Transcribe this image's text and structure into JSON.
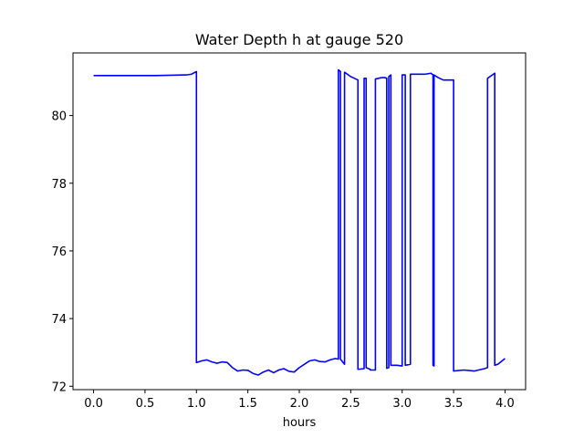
{
  "chart_data": {
    "type": "line",
    "title": "Water Depth h at gauge 520",
    "xlabel": "hours",
    "ylabel": "",
    "xlim": [
      -0.2,
      4.2
    ],
    "ylim": [
      71.9,
      81.85
    ],
    "xticks": [
      0.0,
      0.5,
      1.0,
      1.5,
      2.0,
      2.5,
      3.0,
      3.5,
      4.0
    ],
    "xtick_labels": [
      "0.0",
      "0.5",
      "1.0",
      "1.5",
      "2.0",
      "2.5",
      "3.0",
      "3.5",
      "4.0"
    ],
    "yticks": [
      72,
      74,
      76,
      78,
      80
    ],
    "ytick_labels": [
      "72",
      "74",
      "76",
      "78",
      "80"
    ],
    "grid": false,
    "series": [
      {
        "color": "#0000ff",
        "x": [
          0.0,
          0.3,
          0.6,
          0.9,
          0.95,
          1.0,
          1.0,
          1.05,
          1.1,
          1.15,
          1.2,
          1.25,
          1.3,
          1.35,
          1.4,
          1.45,
          1.5,
          1.55,
          1.6,
          1.65,
          1.7,
          1.75,
          1.8,
          1.85,
          1.9,
          1.95,
          2.0,
          2.05,
          2.1,
          2.15,
          2.2,
          2.25,
          2.3,
          2.35,
          2.38,
          2.38,
          2.4,
          2.4,
          2.44,
          2.44,
          2.5,
          2.55,
          2.57,
          2.57,
          2.63,
          2.63,
          2.65,
          2.65,
          2.69,
          2.69,
          2.74,
          2.74,
          2.8,
          2.83,
          2.85,
          2.85,
          2.87,
          2.87,
          2.89,
          2.89,
          2.95,
          3.0,
          3.0,
          3.03,
          3.03,
          3.08,
          3.08,
          3.15,
          3.22,
          3.28,
          3.3,
          3.3,
          3.31,
          3.31,
          3.35,
          3.4,
          3.45,
          3.5,
          3.5,
          3.6,
          3.7,
          3.8,
          3.83,
          3.83,
          3.9,
          3.9,
          3.93,
          4.0
        ],
        "y": [
          81.18,
          81.18,
          81.18,
          81.2,
          81.22,
          81.3,
          72.7,
          72.75,
          72.78,
          72.72,
          72.68,
          72.72,
          72.7,
          72.55,
          72.45,
          72.48,
          72.47,
          72.38,
          72.33,
          72.42,
          72.48,
          72.4,
          72.48,
          72.52,
          72.44,
          72.42,
          72.55,
          72.65,
          72.75,
          72.78,
          72.73,
          72.72,
          72.78,
          72.82,
          72.8,
          81.35,
          81.3,
          72.8,
          72.65,
          81.28,
          81.15,
          81.08,
          81.05,
          72.5,
          72.52,
          81.1,
          81.1,
          72.55,
          72.5,
          72.48,
          72.48,
          81.08,
          81.12,
          81.12,
          81.1,
          72.53,
          72.55,
          81.15,
          81.2,
          72.62,
          72.62,
          72.6,
          81.2,
          81.2,
          72.62,
          72.65,
          81.22,
          81.22,
          81.22,
          81.25,
          81.2,
          72.62,
          72.6,
          81.2,
          81.12,
          81.05,
          81.05,
          81.05,
          72.45,
          72.48,
          72.45,
          72.52,
          72.55,
          81.1,
          81.25,
          72.62,
          72.65,
          72.82
        ]
      }
    ]
  }
}
